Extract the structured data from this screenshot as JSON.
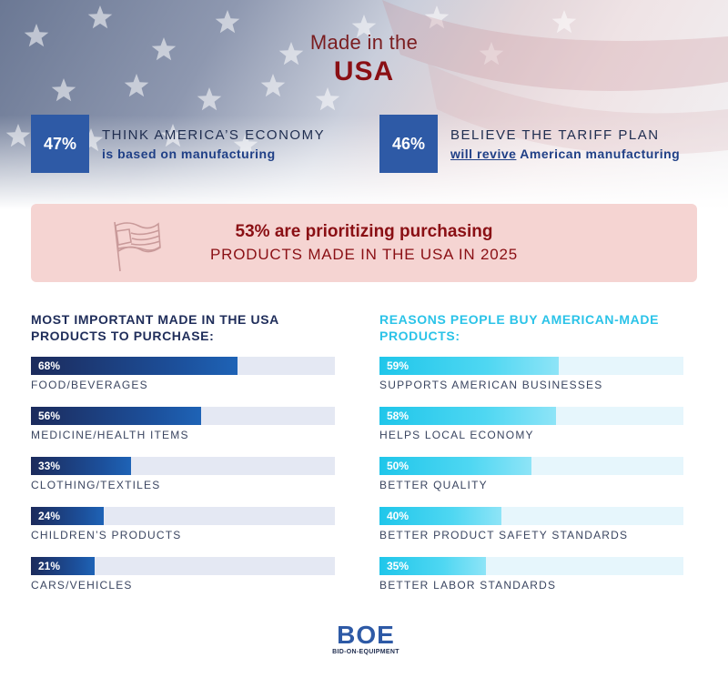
{
  "title": {
    "line1": "Made in the",
    "line2": "USA"
  },
  "stats": [
    {
      "value": "47%",
      "line1": "THINK AMERICA’S ECONOMY",
      "line2": "is based on manufacturing"
    },
    {
      "value": "46%",
      "line1": "BELIEVE THE TARIFF PLAN",
      "line2_underlined": "will revive",
      "line2_rest": " American manufacturing"
    }
  ],
  "banner": {
    "line1": "53% are prioritizing purchasing",
    "line2": "PRODUCTS MADE IN THE USA IN 2025"
  },
  "colors": {
    "navy": "#1f2d5a",
    "red": "#8a0f14",
    "cyan": "#2bc3e8",
    "blue_box": "#2e5aa6",
    "banner_bg": "#f5d4d2"
  },
  "chart_data": [
    {
      "type": "bar",
      "title": "MOST IMPORTANT MADE IN THE USA PRODUCTS TO PURCHASE:",
      "categories": [
        "FOOD/BEVERAGES",
        "MEDICINE/HEALTH ITEMS",
        "CLOTHING/TEXTILES",
        "CHILDREN’S PRODUCTS",
        "CARS/VEHICLES"
      ],
      "values": [
        68,
        56,
        33,
        24,
        21
      ],
      "labels": [
        "68%",
        "56%",
        "33%",
        "24%",
        "21%"
      ],
      "ylim": [
        0,
        100
      ]
    },
    {
      "type": "bar",
      "title": "REASONS PEOPLE BUY AMERICAN-MADE PRODUCTS:",
      "categories": [
        "SUPPORTS AMERICAN BUSINESSES",
        "HELPS LOCAL ECONOMY",
        "BETTER QUALITY",
        "BETTER PRODUCT SAFETY STANDARDS",
        "BETTER LABOR STANDARDS"
      ],
      "values": [
        59,
        58,
        50,
        40,
        35
      ],
      "labels": [
        "59%",
        "58%",
        "50%",
        "40%",
        "35%"
      ],
      "ylim": [
        0,
        100
      ]
    }
  ],
  "logo": {
    "mark": "BOE",
    "sub": "BID-ON-EQUIPMENT"
  }
}
